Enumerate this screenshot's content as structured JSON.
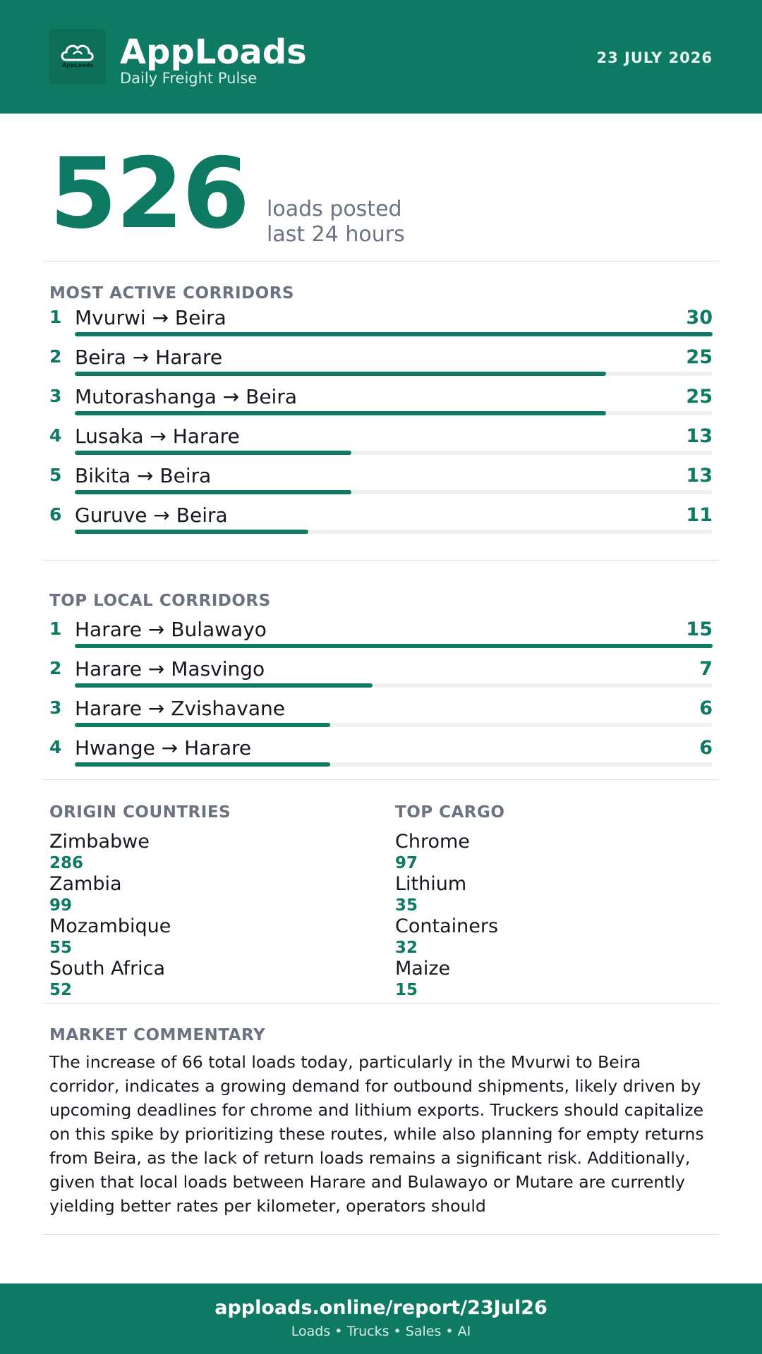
{
  "header": {
    "logo_icon": "cloud-logo-icon",
    "logo_text": "AppLoads",
    "brand": "AppLoads",
    "tagline": "Daily Freight Pulse",
    "date": "23 JULY 2026"
  },
  "hero": {
    "value": "526",
    "line1": "loads posted",
    "line2": "last 24 hours"
  },
  "active_corridors": {
    "title": "MOST ACTIVE CORRIDORS",
    "max": 30,
    "items": [
      {
        "rank": "1",
        "label": "Mvurwi → Beira",
        "value": 30
      },
      {
        "rank": "2",
        "label": "Beira → Harare",
        "value": 25
      },
      {
        "rank": "3",
        "label": "Mutorashanga → Beira",
        "value": 25
      },
      {
        "rank": "4",
        "label": "Lusaka → Harare",
        "value": 13
      },
      {
        "rank": "5",
        "label": "Bikita → Beira",
        "value": 13
      },
      {
        "rank": "6",
        "label": "Guruve → Beira",
        "value": 11
      }
    ]
  },
  "local_corridors": {
    "title": "TOP LOCAL CORRIDORS",
    "max": 15,
    "items": [
      {
        "rank": "1",
        "label": "Harare → Bulawayo",
        "value": 15
      },
      {
        "rank": "2",
        "label": "Harare → Masvingo",
        "value": 7
      },
      {
        "rank": "3",
        "label": "Harare → Zvishavane",
        "value": 6
      },
      {
        "rank": "4",
        "label": "Hwange → Harare",
        "value": 6
      }
    ]
  },
  "origin_countries": {
    "title": "ORIGIN COUNTRIES",
    "items": [
      {
        "name": "Zimbabwe",
        "value": "286"
      },
      {
        "name": "Zambia",
        "value": "99"
      },
      {
        "name": "Mozambique",
        "value": "55"
      },
      {
        "name": "South Africa",
        "value": "52"
      }
    ]
  },
  "top_cargo": {
    "title": "TOP CARGO",
    "items": [
      {
        "name": "Chrome",
        "value": "97"
      },
      {
        "name": "Lithium",
        "value": "35"
      },
      {
        "name": "Containers",
        "value": "32"
      },
      {
        "name": "Maize",
        "value": "15"
      }
    ]
  },
  "commentary": {
    "title": "MARKET COMMENTARY",
    "text": "The increase of 66 total loads today, particularly in the Mvurwi to Beira corridor, indicates a growing demand for outbound shipments, likely driven by upcoming deadlines for chrome and lithium exports. Truckers should capitalize on this spike by prioritizing these routes, while also planning for empty returns from Beira, as the lack of return loads remains a significant risk. Additionally, given that local loads between Harare and Bulawayo or Mutare are currently yielding better rates per kilometer, operators should"
  },
  "footer": {
    "url": "apploads.online/report/23Jul26",
    "tagline": "Loads • Trucks • Sales • AI"
  },
  "colors": {
    "brand": "#0f7a63",
    "muted": "#6b7280",
    "text": "#15191f",
    "track": "#eef0f2"
  }
}
